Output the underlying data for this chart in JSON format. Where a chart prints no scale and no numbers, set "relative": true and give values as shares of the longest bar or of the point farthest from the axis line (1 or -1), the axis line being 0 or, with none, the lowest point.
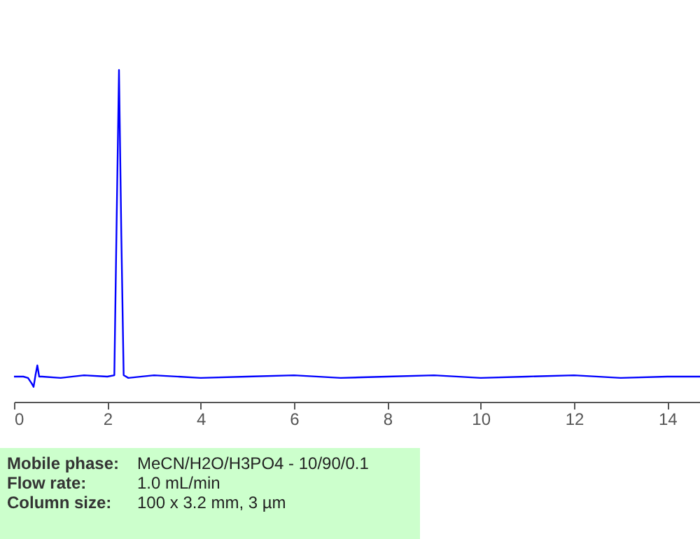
{
  "chart_data": {
    "type": "line",
    "relative": true,
    "x": [
      0,
      0.2,
      0.3,
      0.38,
      0.42,
      0.46,
      0.5,
      0.54,
      0.6,
      1.0,
      1.5,
      2.0,
      2.15,
      2.2,
      2.25,
      2.3,
      2.35,
      2.45,
      3.0,
      4.0,
      5.0,
      6.0,
      7.0,
      8.0,
      9.0,
      10.0,
      11.0,
      12.0,
      13.0,
      14.0,
      14.7
    ],
    "series": [
      {
        "color": "#0000ff",
        "values": [
          0.076,
          0.076,
          0.072,
          0.055,
          0.045,
          0.08,
          0.11,
          0.076,
          0.076,
          0.072,
          0.08,
          0.076,
          0.08,
          0.55,
          1,
          0.5,
          0.08,
          0.072,
          0.08,
          0.072,
          0.076,
          0.08,
          0.072,
          0.076,
          0.08,
          0.072,
          0.076,
          0.08,
          0.072,
          0.076,
          0.076
        ]
      }
    ],
    "xlim": [
      0,
      14.7
    ],
    "xticks": [
      0,
      2,
      4,
      6,
      8,
      10,
      12,
      14
    ],
    "grid": false,
    "annotations": [
      "Mobile phase: MeCN/H2O/H3PO4 - 10/90/0.1",
      "Flow rate: 1.0 mL/min",
      "Column size: 100 x 3.2 mm, 3 µm"
    ]
  }
}
